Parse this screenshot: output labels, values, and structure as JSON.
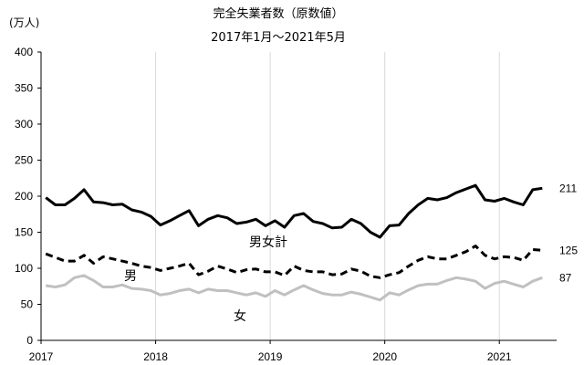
{
  "chart_data": {
    "type": "line",
    "title": "完全失業者数（原数値）",
    "subtitle": "2017年1月～2021年5月",
    "unit_label": "(万人)",
    "ylim": [
      0,
      400
    ],
    "yticks": [
      0,
      50,
      100,
      150,
      200,
      250,
      300,
      350,
      400
    ],
    "x_start": "2017-01",
    "x_end": "2021-05",
    "xtick_labels": [
      "2017",
      "2018",
      "2019",
      "2020",
      "2021"
    ],
    "grid": {
      "vertical": true,
      "horizontal": false
    },
    "series": [
      {
        "name": "男女計",
        "end_label": "211",
        "color": "#000000",
        "style": "solid",
        "values": [
          198,
          188,
          188,
          197,
          209,
          192,
          191,
          188,
          189,
          181,
          178,
          172,
          160,
          166,
          173,
          180,
          159,
          168,
          173,
          170,
          162,
          164,
          168,
          159,
          166,
          157,
          173,
          176,
          165,
          162,
          156,
          157,
          168,
          162,
          150,
          143,
          159,
          160,
          176,
          188,
          197,
          195,
          198,
          205,
          210,
          215,
          195,
          193,
          197,
          192,
          188,
          209,
          211
        ]
      },
      {
        "name": "男",
        "end_label": "125",
        "color": "#000000",
        "style": "dashed",
        "values": [
          120,
          115,
          110,
          110,
          118,
          107,
          116,
          113,
          110,
          107,
          103,
          101,
          97,
          100,
          103,
          107,
          91,
          96,
          103,
          99,
          94,
          98,
          99,
          95,
          95,
          90,
          103,
          97,
          95,
          95,
          91,
          92,
          99,
          96,
          89,
          87,
          91,
          94,
          103,
          111,
          116,
          113,
          113,
          118,
          123,
          131,
          118,
          113,
          116,
          115,
          111,
          126,
          125
        ]
      },
      {
        "name": "女",
        "end_label": "87",
        "color": "#c0c0c0",
        "style": "solid",
        "values": [
          76,
          74,
          77,
          87,
          90,
          83,
          74,
          74,
          77,
          72,
          71,
          69,
          63,
          65,
          69,
          71,
          66,
          71,
          69,
          69,
          66,
          63,
          66,
          61,
          69,
          63,
          70,
          76,
          70,
          65,
          63,
          63,
          67,
          64,
          60,
          56,
          66,
          63,
          70,
          76,
          78,
          78,
          83,
          87,
          85,
          82,
          72,
          79,
          82,
          78,
          74,
          82,
          87
        ]
      }
    ],
    "annotations": [
      "男女計",
      "男",
      "女"
    ]
  }
}
